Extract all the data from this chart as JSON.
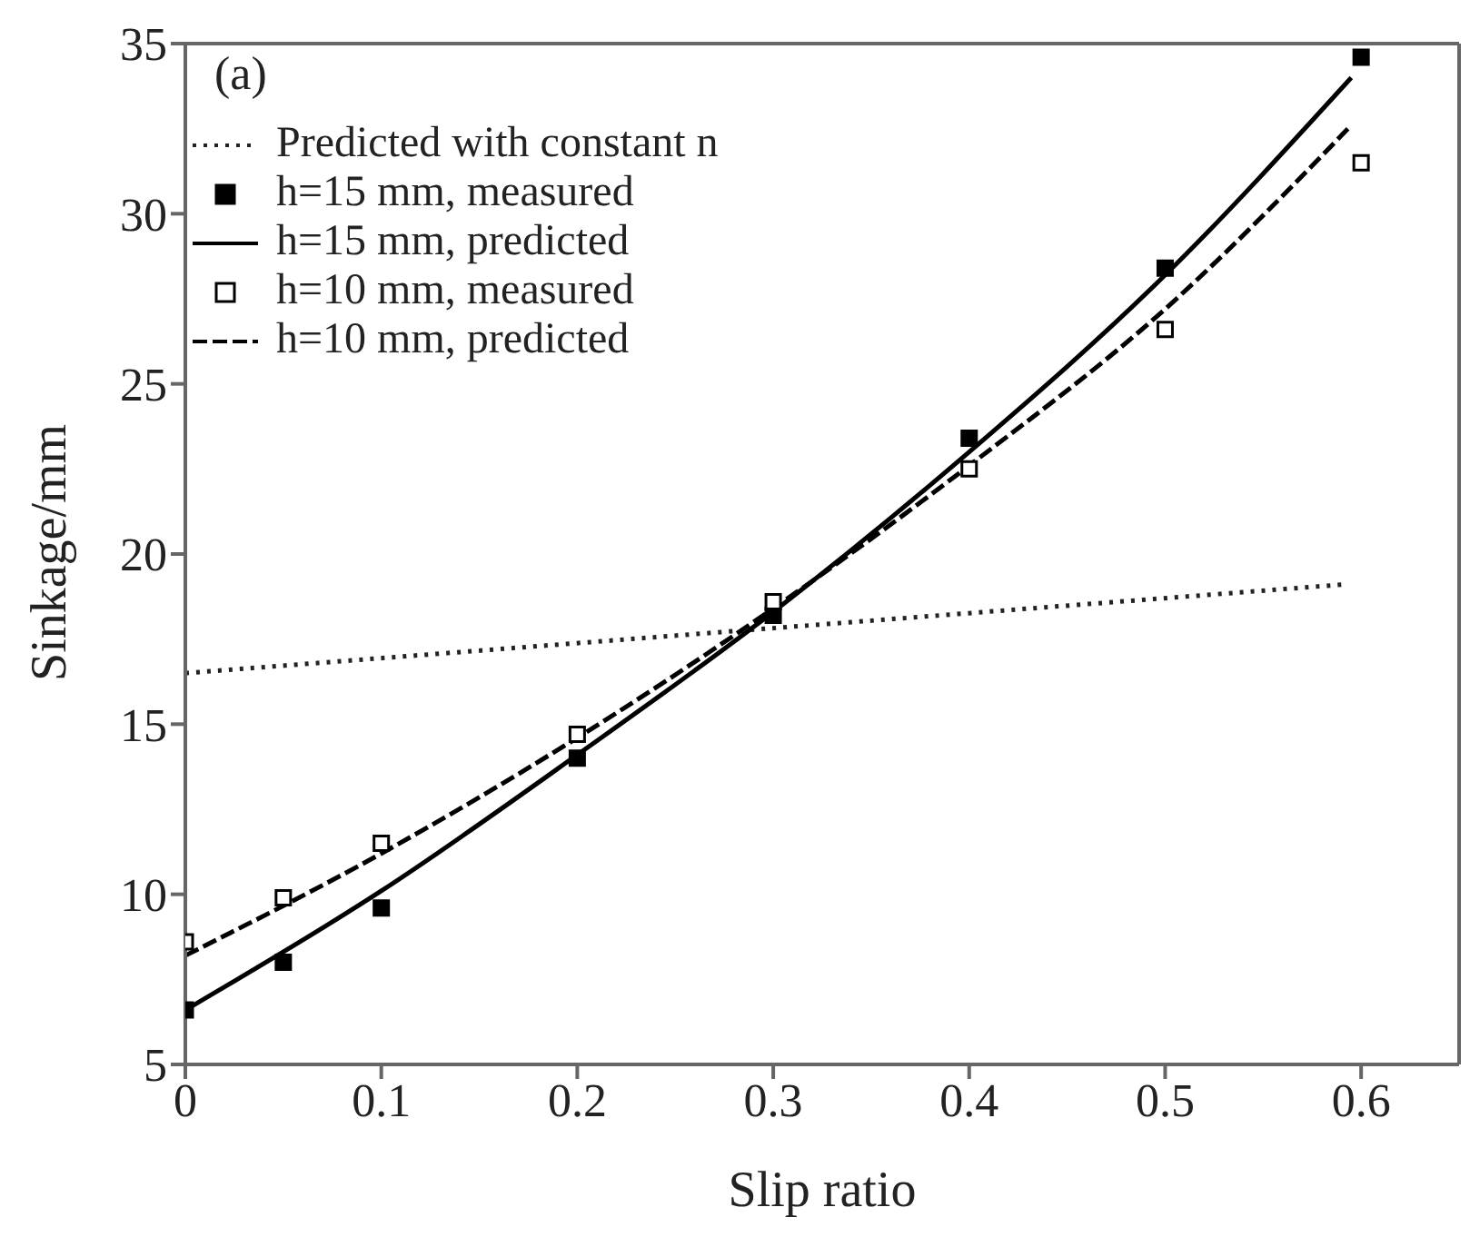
{
  "chart_data": {
    "type": "line",
    "xlabel": "Slip ratio",
    "ylabel": "Sinkage/mm",
    "annotations": [
      "(a)"
    ],
    "xlim": [
      0,
      0.65
    ],
    "xticks": [
      0,
      0.1,
      0.2,
      0.3,
      0.4,
      0.5,
      0.6
    ],
    "ylim": [
      5,
      35
    ],
    "yticks": [
      5,
      10,
      15,
      20,
      25,
      30,
      35
    ],
    "grid": false,
    "legend": "top left",
    "series": [
      {
        "name": "Predicted with constant n",
        "line_style": "dotted",
        "marker": "none",
        "color": "#222222",
        "x": [
          0,
          0.59
        ],
        "values": [
          16.5,
          19.1
        ]
      },
      {
        "name": "h=15 mm, measured",
        "type": "scatter",
        "marker": "square",
        "color": "#000000",
        "x": [
          0,
          0.05,
          0.1,
          0.2,
          0.3,
          0.4,
          0.5,
          0.6
        ],
        "values": [
          6.6,
          8.0,
          9.6,
          14.0,
          18.2,
          23.4,
          28.4,
          34.6
        ]
      },
      {
        "name": "h=15 mm, predicted",
        "line_style": "solid",
        "marker": "none",
        "color": "#000000",
        "x": [
          0,
          0.1,
          0.2,
          0.3,
          0.4,
          0.5,
          0.595
        ],
        "values": [
          6.6,
          10.1,
          14.1,
          18.3,
          23.0,
          28.2,
          34.0
        ]
      },
      {
        "name": "h=10 mm, measured",
        "type": "scatter",
        "marker": "square",
        "color": "#ffffff",
        "x": [
          0,
          0.05,
          0.1,
          0.2,
          0.3,
          0.4,
          0.5,
          0.6
        ],
        "values": [
          8.6,
          9.9,
          11.5,
          14.7,
          18.6,
          22.5,
          26.6,
          31.5
        ]
      },
      {
        "name": "h=10 mm, predicted",
        "line_style": "dashed",
        "marker": "none",
        "color": "#000000",
        "x": [
          0,
          0.1,
          0.2,
          0.3,
          0.4,
          0.5,
          0.595
        ],
        "values": [
          8.2,
          11.2,
          14.6,
          18.4,
          22.6,
          27.2,
          32.6
        ]
      }
    ]
  }
}
